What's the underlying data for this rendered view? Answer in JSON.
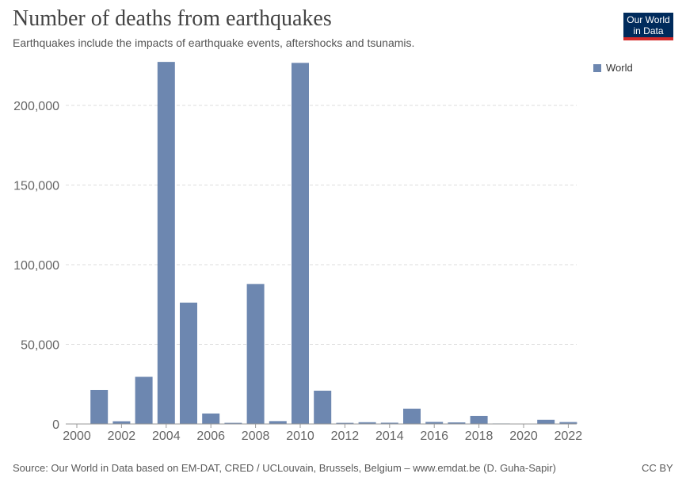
{
  "header": {
    "title": "Number of deaths from earthquakes",
    "subtitle": "Earthquakes include the impacts of earthquake events, aftershocks and tsunamis."
  },
  "logo": {
    "line1": "Our World",
    "line2": "in Data"
  },
  "footer": {
    "source": "Source: Our World in Data based on EM-DAT, CRED / UCLouvain, Brussels, Belgium – www.emdat.be (D. Guha-Sapir)",
    "license": "CC BY"
  },
  "colors": {
    "bar": "#6d87b0",
    "grid": "#dddddd",
    "logo_bg": "#002b5c",
    "logo_accent": "#d42b2b"
  },
  "chart_data": {
    "type": "bar",
    "title": "Number of deaths from earthquakes",
    "xlabel": "",
    "ylabel": "",
    "ylim": [
      0,
      225000
    ],
    "yticks": [
      0,
      50000,
      100000,
      150000,
      200000
    ],
    "ytick_labels": [
      "0",
      "50,000",
      "100,000",
      "150,000",
      "200,000"
    ],
    "xtick_labels": [
      "2000",
      "2002",
      "2004",
      "2006",
      "2008",
      "2010",
      "2012",
      "2014",
      "2016",
      "2018",
      "2020",
      "2022"
    ],
    "legend": [
      "World"
    ],
    "legend_position": "top-right",
    "grid": true,
    "categories": [
      2000,
      2001,
      2002,
      2003,
      2004,
      2005,
      2006,
      2007,
      2008,
      2009,
      2010,
      2011,
      2012,
      2013,
      2014,
      2015,
      2016,
      2017,
      2018,
      2019,
      2020,
      2021,
      2022
    ],
    "series": [
      {
        "name": "World",
        "values": [
          200,
          21400,
          1700,
          29600,
          227300,
          76200,
          6600,
          700,
          87900,
          1800,
          226700,
          20900,
          700,
          1100,
          800,
          9600,
          1300,
          1000,
          5000,
          300,
          200,
          2600,
          1200
        ]
      }
    ]
  }
}
